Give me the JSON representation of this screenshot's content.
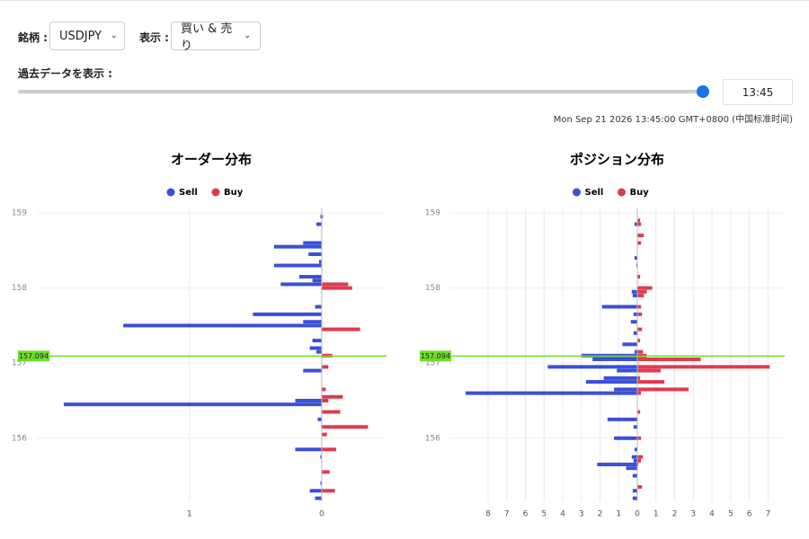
{
  "controls": {
    "symbol_label": "銘柄 :",
    "symbol_value": "USDJPY",
    "display_label": "表示 :",
    "display_value": "買い & 売り",
    "history_label": "過去データを表示 :",
    "time_value": "13:45",
    "timestamp": "Mon Sep 21 2026 13:45:00 GMT+0800 (中国标准时间)"
  },
  "chart_data": [
    {
      "type": "hbar",
      "title": "オーダー分布",
      "legend": "top",
      "grid": true,
      "current_price": 157.094,
      "xlim": [
        -2.16,
        0.49
      ],
      "xticks": [
        {
          "value": -1,
          "label": "1"
        },
        0
      ],
      "ylim": [
        155.16,
        159.06
      ],
      "yticks": [
        156,
        157,
        158,
        159
      ],
      "y": [
        158.95,
        158.85,
        158.6,
        158.55,
        158.45,
        158.35,
        158.3,
        158.15,
        158.1,
        158.05,
        158.0,
        157.75,
        157.65,
        157.55,
        157.5,
        157.45,
        157.3,
        157.2,
        157.15,
        157.1,
        156.95,
        156.9,
        156.65,
        156.55,
        156.5,
        156.45,
        156.35,
        156.25,
        156.15,
        156.05,
        155.85,
        155.75,
        155.55,
        155.4,
        155.3,
        155.2
      ],
      "series": [
        {
          "name": "Sell",
          "color": "#3b4fd8",
          "values": [
            -0.01,
            -0.04,
            -0.14,
            -0.36,
            -0.1,
            -0.02,
            -0.36,
            -0.17,
            -0.07,
            -0.31,
            null,
            -0.05,
            -0.52,
            -0.14,
            -1.5,
            null,
            -0.07,
            -0.09,
            -0.04,
            null,
            null,
            -0.14,
            null,
            null,
            -0.2,
            -1.95,
            null,
            -0.03,
            null,
            null,
            -0.2,
            -0.01,
            null,
            -0.01,
            -0.09,
            -0.05
          ]
        },
        {
          "name": "Buy",
          "color": "#e03a50",
          "values": [
            0.01,
            null,
            null,
            null,
            null,
            null,
            null,
            null,
            null,
            0.2,
            0.23,
            null,
            null,
            null,
            null,
            0.29,
            null,
            null,
            null,
            0.08,
            0.05,
            null,
            0.03,
            0.16,
            0.05,
            null,
            0.14,
            null,
            0.35,
            0.04,
            0.11,
            null,
            0.06,
            null,
            0.1,
            null
          ]
        }
      ]
    },
    {
      "type": "hbar",
      "title": "ポジション分布",
      "legend": "top",
      "grid": true,
      "current_price": 157.094,
      "xlim": [
        -10.07,
        7.9
      ],
      "xticks": [
        {
          "value": -8,
          "label": "8"
        },
        {
          "value": -7,
          "label": "7"
        },
        {
          "value": -6,
          "label": "6"
        },
        {
          "value": -5,
          "label": "5"
        },
        {
          "value": -4,
          "label": "4"
        },
        {
          "value": -3,
          "label": "3"
        },
        {
          "value": -2,
          "label": "2"
        },
        {
          "value": -1,
          "label": "1"
        },
        0,
        1,
        2,
        3,
        4,
        5,
        6,
        7
      ],
      "ylim": [
        155.16,
        159.06
      ],
      "yticks": [
        156,
        157,
        158,
        159
      ],
      "y": [
        158.9,
        158.85,
        158.7,
        158.6,
        158.4,
        158.3,
        158.15,
        158.0,
        157.95,
        157.9,
        157.75,
        157.65,
        157.55,
        157.45,
        157.4,
        157.3,
        157.25,
        157.15,
        157.1,
        157.05,
        156.95,
        156.9,
        156.8,
        156.75,
        156.65,
        156.6,
        156.35,
        156.25,
        156.15,
        156.0,
        155.85,
        155.75,
        155.7,
        155.65,
        155.6,
        155.5,
        155.35,
        155.3,
        155.2
      ],
      "series": [
        {
          "name": "Sell",
          "color": "#3b4fd8",
          "values": [
            null,
            -0.15,
            null,
            null,
            -0.15,
            -0.05,
            null,
            null,
            -0.3,
            -0.25,
            -1.9,
            -0.2,
            -0.35,
            null,
            -0.2,
            null,
            -0.8,
            -0.15,
            -3,
            -2.4,
            -4.8,
            -1.1,
            -1.8,
            -2.75,
            -1.25,
            -9.2,
            null,
            -1.6,
            -0.2,
            -1.25,
            -0.15,
            -0.3,
            -0.2,
            -2.15,
            -0.6,
            -0.25,
            null,
            -0.25,
            -0.25
          ]
        },
        {
          "name": "Buy",
          "color": "#e03a50",
          "values": [
            0.15,
            0.2,
            0.35,
            0.2,
            null,
            null,
            0.15,
            0.8,
            0.5,
            0.35,
            0.2,
            0.25,
            null,
            0.25,
            null,
            0.15,
            null,
            0.3,
            0.5,
            3.4,
            7.1,
            1.25,
            0.15,
            1.45,
            2.75,
            0.2,
            0.15,
            null,
            null,
            0.2,
            null,
            0.3,
            0.2,
            0.05,
            null,
            null,
            0.25,
            null,
            null
          ]
        }
      ]
    }
  ]
}
